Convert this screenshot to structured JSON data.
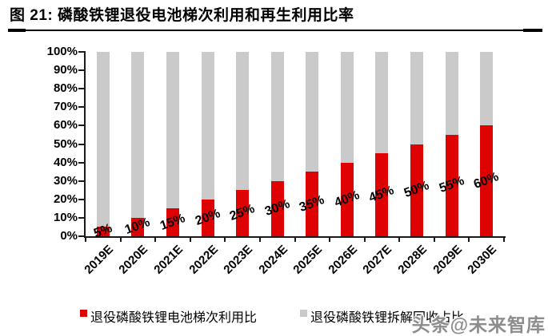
{
  "header": {
    "title": "图 21: 磷酸铁锂退役电池梯次利用和再生利用比率"
  },
  "chart_data": {
    "type": "bar",
    "stacked": true,
    "title": "磷酸铁锂退役电池梯次利用和再生利用比率",
    "categories": [
      "2019E",
      "2020E",
      "2021E",
      "2022E",
      "2023E",
      "2024E",
      "2025E",
      "2026E",
      "2027E",
      "2028E",
      "2029E",
      "2030E"
    ],
    "series": [
      {
        "name": "退役磷酸铁锂电池梯次利用比",
        "color": "#df0202",
        "values": [
          5,
          10,
          15,
          20,
          25,
          30,
          35,
          40,
          45,
          50,
          55,
          60
        ],
        "data_labels": [
          "5%",
          "10%",
          "15%",
          "20%",
          "25%",
          "30%",
          "35%",
          "40%",
          "45%",
          "50%",
          "55%",
          "60%"
        ]
      },
      {
        "name": "退役磷酸铁锂拆解回收占比",
        "color": "#cacaca",
        "values": [
          95,
          90,
          85,
          80,
          75,
          70,
          65,
          60,
          55,
          50,
          45,
          40
        ],
        "data_labels": []
      }
    ],
    "ylim": [
      0,
      100
    ],
    "y_ticks": [
      "100%",
      "90%",
      "80%",
      "70%",
      "60%",
      "50%",
      "40%",
      "30%",
      "20%",
      "10%",
      "0%"
    ],
    "grid": false,
    "legend_position": "bottom",
    "x_label_rotation": -45,
    "data_label_rotation": -20,
    "axis_color": "#1a1a1a"
  },
  "watermark": {
    "text": "头条@未来智库"
  }
}
